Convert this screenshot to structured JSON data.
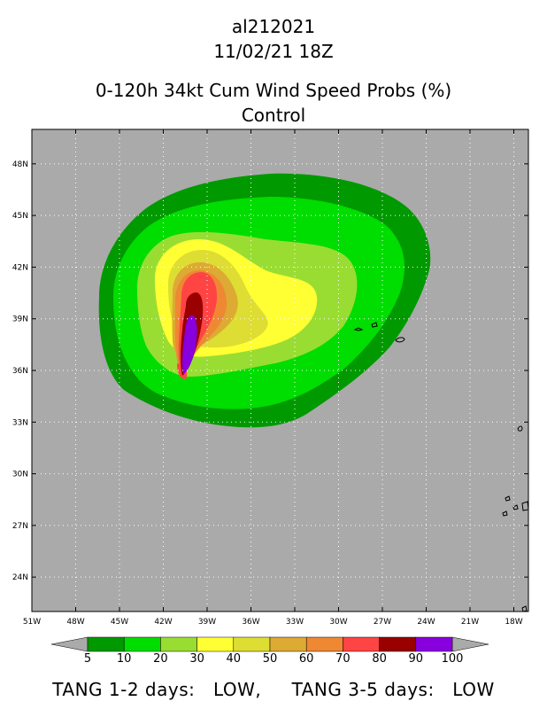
{
  "header": {
    "storm_id": "al212021",
    "datetime": "11/02/21 18Z",
    "product": "0-120h 34kt Cum Wind Speed Probs (%)",
    "run": "Control"
  },
  "map": {
    "background_color": "#aaaaaa",
    "lon_ticks": [
      "51W",
      "48W",
      "45W",
      "42W",
      "39W",
      "36W",
      "33W",
      "30W",
      "27W",
      "24W",
      "21W",
      "18W"
    ],
    "lat_ticks": [
      "48N",
      "45N",
      "42N",
      "39N",
      "36N",
      "33N",
      "30N",
      "27N",
      "24N"
    ],
    "lon_range": [
      -51,
      -17
    ],
    "lat_range": [
      22,
      50
    ]
  },
  "colorbar": {
    "levels": [
      "5",
      "10",
      "20",
      "30",
      "40",
      "50",
      "60",
      "70",
      "80",
      "90",
      "100"
    ],
    "colors": [
      "#009900",
      "#00dd00",
      "#99dd33",
      "#ffff33",
      "#dddd33",
      "#ddaa33",
      "#ee8833",
      "#ff4444",
      "#990000",
      "#8800dd"
    ],
    "end_color": "#aaaaaa"
  },
  "footer": {
    "tang_1_2_label": "TANG 1-2 days:",
    "tang_1_2_value": "LOW,",
    "tang_3_5_label": "TANG 3-5 days:",
    "tang_3_5_value": "LOW"
  }
}
